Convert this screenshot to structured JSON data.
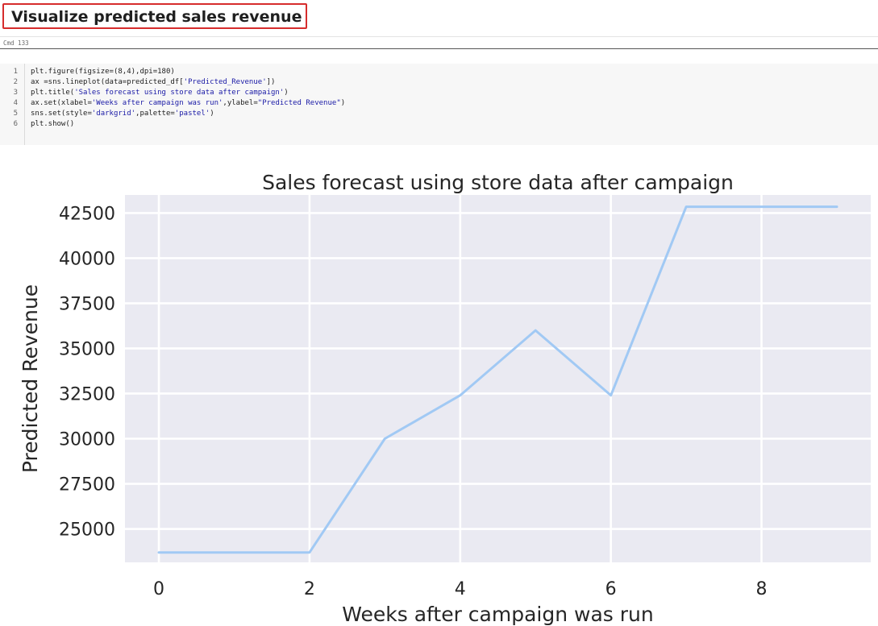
{
  "heading": "Visualize predicted sales revenue",
  "cell": {
    "cmd_label": "Cmd 133",
    "lines": [
      {
        "num": "1",
        "code": "plt.figure(figsize=(8,4),dpi=180)"
      },
      {
        "num": "2",
        "code": "ax =sns.lineplot(data=predicted_df['Predicted_Revenue'])"
      },
      {
        "num": "3",
        "code": "plt.title('Sales forecast using store data after campaign')"
      },
      {
        "num": "4",
        "code": "ax.set(xlabel='Weeks after campaign was run',ylabel=\"Predicted Revenue\")"
      },
      {
        "num": "5",
        "code": "sns.set(style='darkgrid',palette='pastel')"
      },
      {
        "num": "6",
        "code": "plt.show()"
      }
    ]
  },
  "chart_data": {
    "type": "line",
    "title": "Sales forecast using store data after campaign",
    "xlabel": "Weeks after campaign was run",
    "ylabel": "Predicted Revenue",
    "x": [
      0,
      1,
      2,
      3,
      4,
      5,
      6,
      7,
      8,
      9
    ],
    "series": [
      {
        "name": "",
        "values": [
          23700,
          23700,
          23700,
          30000,
          32400,
          36000,
          32400,
          42850,
          42850,
          42850
        ]
      }
    ],
    "xlim": [
      -0.45,
      9.45
    ],
    "ylim": [
      23150,
      43500
    ],
    "xticks": [
      0,
      2,
      4,
      6,
      8
    ],
    "yticks": [
      25000,
      27500,
      30000,
      32500,
      35000,
      37500,
      40000,
      42500
    ],
    "grid": true,
    "style": "darkgrid",
    "line_color": "#a1c9f4",
    "background_color": "#eaeaf2"
  }
}
